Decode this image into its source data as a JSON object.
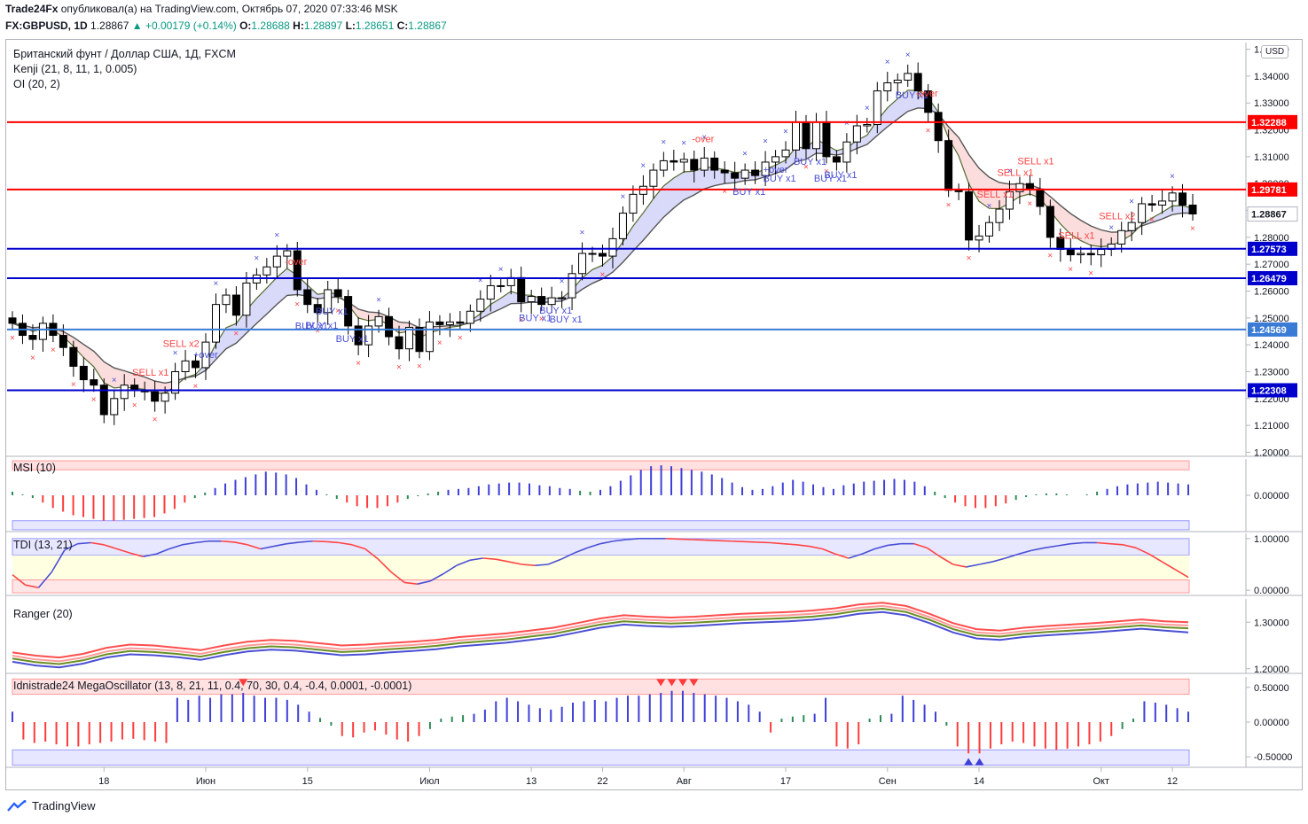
{
  "header": {
    "line1": "Trade24Fx опубликовал(а) на TradingView.com, Октябрь 07, 2020 07:33:46 MSK",
    "publisher": "Trade24Fx",
    "symbol": "FX:GBPUSD, 1D",
    "last": "1.28867",
    "change": "+0.00179 (+0.14%)",
    "o_label": "O:",
    "o": "1.28688",
    "h_label": "H:",
    "h": "1.28897",
    "l_label": "L:",
    "l": "1.28651",
    "c_label": "C:",
    "c": "1.28867"
  },
  "legend": {
    "title": "Британский фунт / Доллар США, 1Д, FXCM",
    "kenji": "Kenji (21, 8, 11, 1, 0.005)",
    "oi": "OI (20, 2)"
  },
  "currency_button": "USD",
  "footer": {
    "brand": "TradingView",
    "logo": "tradingview-logo-icon"
  },
  "colors": {
    "up": "#ffffff",
    "down": "#000000",
    "red_line": "#ff0000",
    "blue_line": "#0000cc",
    "accent_green": "#089981"
  },
  "chart_data": [
    {
      "type": "candlestick",
      "title": "Британский фунт / Доллар США, 1Д, FXCM",
      "ylim": [
        1.1985,
        1.3525
      ],
      "y_ticks": [
        1.2,
        1.21,
        1.22,
        1.23,
        1.24,
        1.25,
        1.26,
        1.27,
        1.28,
        1.29,
        1.3,
        1.31,
        1.32,
        1.33,
        1.34,
        1.35
      ],
      "x_ticks": [
        "18",
        "Июн",
        "15",
        "Июл",
        "13",
        "22",
        "Авг",
        "17",
        "Сен",
        "14",
        "Окт",
        "12"
      ],
      "x_tick_index": [
        9,
        19,
        29,
        41,
        51,
        58,
        66,
        76,
        86,
        95,
        107,
        114
      ],
      "close": [
        1.248,
        1.2435,
        1.242,
        1.248,
        1.2435,
        1.239,
        1.232,
        1.227,
        1.225,
        1.214,
        1.22,
        1.225,
        1.223,
        1.2225,
        1.219,
        1.222,
        1.23,
        1.234,
        1.2315,
        1.241,
        1.255,
        1.2585,
        1.251,
        1.263,
        1.266,
        1.269,
        1.273,
        1.275,
        1.2605,
        1.255,
        1.252,
        1.2605,
        1.258,
        1.247,
        1.24,
        1.247,
        1.2505,
        1.243,
        1.2385,
        1.2465,
        1.2375,
        1.2485,
        1.2475,
        1.2485,
        1.248,
        1.2525,
        1.257,
        1.262,
        1.262,
        1.265,
        1.256,
        1.258,
        1.255,
        1.2575,
        1.2575,
        1.2665,
        1.274,
        1.274,
        1.273,
        1.2795,
        1.289,
        1.296,
        1.299,
        1.305,
        1.3085,
        1.308,
        1.309,
        1.305,
        1.3095,
        1.305,
        1.304,
        1.302,
        1.305,
        1.303,
        1.308,
        1.31,
        1.3125,
        1.323,
        1.313,
        1.323,
        1.31,
        1.308,
        1.3155,
        1.3215,
        1.322,
        1.3345,
        1.3375,
        1.3385,
        1.341,
        1.3345,
        1.3265,
        1.316,
        1.2975,
        1.297,
        1.279,
        1.2805,
        1.2855,
        1.2905,
        1.297,
        1.3,
        1.298,
        1.2915,
        1.28,
        1.2755,
        1.2735,
        1.274,
        1.2735,
        1.2755,
        1.2775,
        1.2825,
        1.2855,
        1.2925,
        1.292,
        1.2935,
        1.2965,
        1.292,
        1.2887
      ],
      "hlines": [
        {
          "value": 1.32288,
          "label": "1.32288",
          "color": "#ff0000"
        },
        {
          "value": 1.29781,
          "label": "1.29781",
          "color": "#ff0000"
        },
        {
          "value": 1.28867,
          "label": "1.28867",
          "color": "#ffffff"
        },
        {
          "value": 1.27573,
          "label": "1.27573",
          "color": "#0000cc"
        },
        {
          "value": 1.26479,
          "label": "1.26479",
          "color": "#0000cc"
        },
        {
          "value": 1.24569,
          "label": "1.24569",
          "color": "#3a7bd5"
        },
        {
          "value": 1.22308,
          "label": "1.22308",
          "color": "#0000cc"
        }
      ],
      "annotations": [
        {
          "text": "BUY x1",
          "i": 29,
          "color": "#4a4fd4"
        },
        {
          "text": "BUY x1",
          "i": 30,
          "color": "#4a4fd4"
        },
        {
          "text": "BUY x1",
          "i": 31,
          "color": "#4a4fd4"
        },
        {
          "text": "BUY x1",
          "i": 33,
          "color": "#4a4fd4"
        },
        {
          "text": "-over",
          "i": 28,
          "color": "#ff4444"
        },
        {
          "text": "+over",
          "i": 19,
          "color": "#4a4fd4"
        },
        {
          "text": "SELL x2",
          "i": 16,
          "color": "#ff4444"
        },
        {
          "text": "SELL x1",
          "i": 13,
          "color": "#ff4444"
        },
        {
          "text": "BUY x1",
          "i": 51,
          "color": "#4a4fd4"
        },
        {
          "text": "BUY x1",
          "i": 53,
          "color": "#4a4fd4"
        },
        {
          "text": "BUY x1",
          "i": 54,
          "color": "#4a4fd4"
        },
        {
          "text": "-over",
          "i": 68,
          "color": "#ff4444"
        },
        {
          "text": "BUY x1",
          "i": 72,
          "color": "#4a4fd4"
        },
        {
          "text": "+over",
          "i": 75,
          "color": "#4a4fd4"
        },
        {
          "text": "BUY x1",
          "i": 75,
          "color": "#4a4fd4"
        },
        {
          "text": "BUY x1",
          "i": 78,
          "color": "#4a4fd4"
        },
        {
          "text": "BUY x1",
          "i": 80,
          "color": "#4a4fd4"
        },
        {
          "text": "BUY x1",
          "i": 81,
          "color": "#4a4fd4"
        },
        {
          "text": "BUY x1",
          "i": 88,
          "color": "#4a4fd4"
        },
        {
          "text": "-over",
          "i": 90,
          "color": "#ff4444"
        },
        {
          "text": "SELL x1",
          "i": 96,
          "color": "#ff4444"
        },
        {
          "text": "SELL x1",
          "i": 98,
          "color": "#ff4444"
        },
        {
          "text": "SELL x1",
          "i": 100,
          "color": "#ff4444"
        },
        {
          "text": "SELL x1",
          "i": 104,
          "color": "#ff4444"
        },
        {
          "text": "SELL x2",
          "i": 108,
          "color": "#ff4444"
        }
      ]
    },
    {
      "type": "bar",
      "title": "MSI (10)",
      "ylim": [
        -0.04,
        0.04
      ],
      "y_ticks": [
        "0.00000"
      ],
      "values": [
        0.004,
        0.001,
        -0.003,
        -0.008,
        -0.014,
        -0.018,
        -0.022,
        -0.024,
        -0.026,
        -0.028,
        -0.028,
        -0.027,
        -0.026,
        -0.025,
        -0.024,
        -0.02,
        -0.015,
        -0.008,
        -0.003,
        0.003,
        0.008,
        0.013,
        0.017,
        0.02,
        0.023,
        0.026,
        0.025,
        0.023,
        0.019,
        0.012,
        0.006,
        0.001,
        -0.004,
        -0.008,
        -0.012,
        -0.014,
        -0.014,
        -0.012,
        -0.008,
        -0.004,
        -0.001,
        0.002,
        0.004,
        0.006,
        0.007,
        0.008,
        0.01,
        0.012,
        0.013,
        0.014,
        0.014,
        0.013,
        0.011,
        0.01,
        0.008,
        0.007,
        0.005,
        0.004,
        0.006,
        0.01,
        0.016,
        0.022,
        0.028,
        0.032,
        0.033,
        0.032,
        0.03,
        0.028,
        0.026,
        0.023,
        0.019,
        0.014,
        0.009,
        0.006,
        0.007,
        0.01,
        0.014,
        0.017,
        0.015,
        0.012,
        0.009,
        0.007,
        0.011,
        0.013,
        0.015,
        0.016,
        0.017,
        0.018,
        0.017,
        0.015,
        0.01,
        0.004,
        -0.003,
        -0.008,
        -0.012,
        -0.014,
        -0.014,
        -0.012,
        -0.009,
        -0.005,
        -0.002,
        0.001,
        0.002,
        0.002,
        0.001,
        0.0,
        0.001,
        0.004,
        0.007,
        0.01,
        0.012,
        0.013,
        0.014,
        0.015,
        0.014,
        0.013,
        0.012
      ]
    },
    {
      "type": "line",
      "title": "TDI (13, 21)",
      "ylim": [
        -0.1,
        1.1
      ],
      "y_ticks": [
        "1.00000",
        "0.00000"
      ],
      "values": [
        0.3,
        0.1,
        0.05,
        0.35,
        0.78,
        0.9,
        0.92,
        0.88,
        0.8,
        0.72,
        0.65,
        0.7,
        0.8,
        0.88,
        0.92,
        0.95,
        0.95,
        0.93,
        0.88,
        0.8,
        0.85,
        0.9,
        0.93,
        0.95,
        0.94,
        0.92,
        0.88,
        0.8,
        0.6,
        0.35,
        0.15,
        0.12,
        0.18,
        0.32,
        0.48,
        0.58,
        0.62,
        0.6,
        0.55,
        0.5,
        0.48,
        0.5,
        0.6,
        0.72,
        0.82,
        0.9,
        0.95,
        0.98,
        1.0,
        1.0,
        1.0,
        0.99,
        0.98,
        0.97,
        0.96,
        0.95,
        0.94,
        0.93,
        0.92,
        0.9,
        0.88,
        0.85,
        0.8,
        0.7,
        0.62,
        0.7,
        0.8,
        0.87,
        0.9,
        0.9,
        0.82,
        0.65,
        0.5,
        0.45,
        0.5,
        0.55,
        0.62,
        0.7,
        0.77,
        0.82,
        0.86,
        0.9,
        0.92,
        0.92,
        0.9,
        0.88,
        0.82,
        0.7,
        0.55,
        0.4,
        0.25
      ]
    },
    {
      "type": "line",
      "title": "Ranger (20)",
      "ylim": [
        1.19,
        1.35
      ],
      "y_ticks": [
        "1.30000",
        "1.20000"
      ],
      "series": [
        {
          "values": [
            1.235,
            1.228,
            1.224,
            1.232,
            1.245,
            1.252,
            1.25,
            1.245,
            1.24,
            1.25,
            1.258,
            1.262,
            1.26,
            1.255,
            1.25,
            1.252,
            1.255,
            1.258,
            1.262,
            1.268,
            1.272,
            1.276,
            1.282,
            1.288,
            1.298,
            1.308,
            1.315,
            1.312,
            1.31,
            1.312,
            1.315,
            1.318,
            1.32,
            1.322,
            1.325,
            1.33,
            1.338,
            1.342,
            1.335,
            1.318,
            1.298,
            1.285,
            1.282,
            1.288,
            1.292,
            1.295,
            1.298,
            1.302,
            1.306,
            1.302,
            1.3
          ]
        },
        {
          "values": [
            1.228,
            1.22,
            1.216,
            1.224,
            1.237,
            1.244,
            1.242,
            1.238,
            1.232,
            1.242,
            1.25,
            1.254,
            1.252,
            1.247,
            1.242,
            1.244,
            1.248,
            1.251,
            1.255,
            1.261,
            1.265,
            1.269,
            1.275,
            1.281,
            1.291,
            1.301,
            1.308,
            1.305,
            1.303,
            1.305,
            1.308,
            1.311,
            1.313,
            1.315,
            1.318,
            1.323,
            1.331,
            1.335,
            1.328,
            1.311,
            1.291,
            1.278,
            1.275,
            1.281,
            1.285,
            1.288,
            1.291,
            1.295,
            1.299,
            1.295,
            1.293
          ]
        },
        {
          "values": [
            1.222,
            1.214,
            1.21,
            1.218,
            1.231,
            1.238,
            1.236,
            1.232,
            1.226,
            1.236,
            1.244,
            1.248,
            1.246,
            1.241,
            1.236,
            1.238,
            1.242,
            1.245,
            1.249,
            1.255,
            1.259,
            1.263,
            1.269,
            1.275,
            1.285,
            1.295,
            1.302,
            1.299,
            1.297,
            1.299,
            1.302,
            1.305,
            1.307,
            1.309,
            1.312,
            1.317,
            1.325,
            1.329,
            1.322,
            1.305,
            1.285,
            1.272,
            1.269,
            1.275,
            1.279,
            1.282,
            1.285,
            1.289,
            1.293,
            1.289,
            1.287
          ]
        },
        {
          "values": [
            1.215,
            1.207,
            1.203,
            1.211,
            1.224,
            1.231,
            1.229,
            1.225,
            1.219,
            1.229,
            1.237,
            1.241,
            1.239,
            1.234,
            1.229,
            1.231,
            1.235,
            1.238,
            1.242,
            1.248,
            1.252,
            1.256,
            1.262,
            1.268,
            1.278,
            1.288,
            1.295,
            1.292,
            1.29,
            1.292,
            1.295,
            1.298,
            1.3,
            1.302,
            1.305,
            1.31,
            1.318,
            1.322,
            1.315,
            1.298,
            1.278,
            1.265,
            1.262,
            1.268,
            1.272,
            1.275,
            1.278,
            1.282,
            1.286,
            1.282,
            1.278
          ]
        }
      ]
    },
    {
      "type": "bar",
      "title": "Idnistrade24 MegaOscillator (13, 8, 21, 11, 0.4, 70, 30, 0.4, -0.4, 0.0001, -0.0001)",
      "ylim": [
        -0.65,
        0.65
      ],
      "y_ticks": [
        "0.50000",
        "0.00000",
        "-0.50000"
      ],
      "values": [
        0.15,
        -0.25,
        -0.3,
        -0.28,
        -0.32,
        -0.35,
        -0.35,
        -0.32,
        -0.3,
        -0.28,
        -0.25,
        -0.24,
        -0.26,
        -0.28,
        -0.3,
        0.35,
        0.32,
        0.38,
        0.35,
        0.4,
        0.4,
        0.42,
        0.38,
        0.35,
        0.35,
        0.32,
        0.25,
        0.15,
        0.06,
        -0.05,
        -0.2,
        -0.22,
        -0.15,
        -0.12,
        -0.18,
        -0.25,
        -0.28,
        -0.2,
        -0.1,
        0.05,
        0.08,
        0.1,
        0.12,
        0.18,
        0.3,
        0.35,
        0.3,
        0.25,
        0.2,
        0.18,
        0.22,
        0.28,
        0.3,
        0.32,
        0.3,
        0.35,
        0.38,
        0.38,
        0.4,
        0.42,
        0.45,
        0.45,
        0.42,
        0.4,
        0.38,
        0.35,
        0.3,
        0.25,
        0.15,
        -0.15,
        0.05,
        0.08,
        0.1,
        0.12,
        0.35,
        -0.35,
        -0.38,
        -0.32,
        0.05,
        0.1,
        0.12,
        0.38,
        0.32,
        0.25,
        0.15,
        -0.05,
        -0.35,
        -0.45,
        -0.45,
        -0.38,
        -0.32,
        -0.28,
        -0.3,
        -0.35,
        -0.38,
        -0.4,
        -0.38,
        -0.35,
        -0.32,
        -0.28,
        -0.2,
        -0.1,
        0.05,
        0.3,
        0.28,
        0.25,
        0.2,
        0.15
      ]
    }
  ]
}
